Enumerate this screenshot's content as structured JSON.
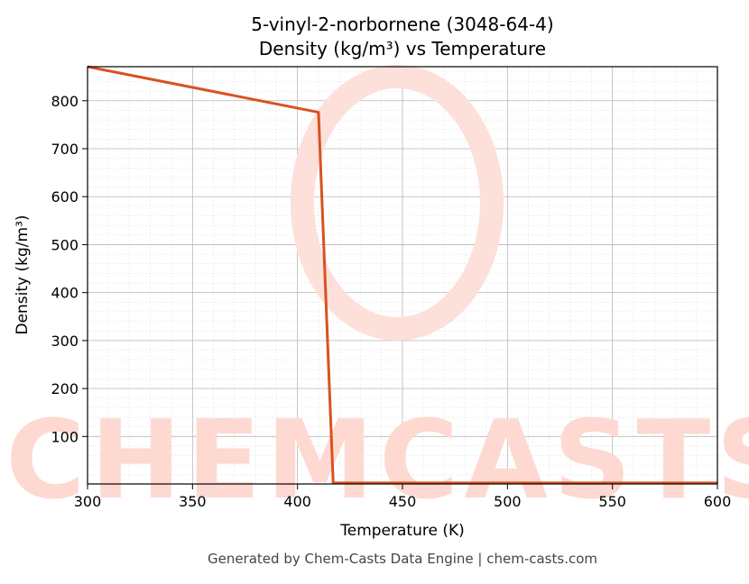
{
  "chart_data": {
    "type": "line",
    "title": "5-vinyl-2-norbornene (3048-64-4)",
    "subtitle": "Density (kg/m³) vs Temperature",
    "x_label": "Temperature (K)",
    "y_label": "Density (kg/m³)",
    "watermark": "CHEMCASTS",
    "footer": "Generated by Chem-Casts Data Engine | chem-casts.com",
    "x": [
      300,
      410,
      417,
      600
    ],
    "series": [
      {
        "name": "Density",
        "color": "#d9521f",
        "values": [
          871,
          776,
          3,
          3
        ]
      }
    ],
    "xlim": [
      300,
      600
    ],
    "xticks": [
      300,
      350,
      400,
      450,
      500,
      550,
      600
    ],
    "ylim": [
      1,
      871
    ],
    "yticks": [
      100,
      200,
      300,
      400,
      500,
      600,
      700,
      800
    ],
    "grid": true
  }
}
